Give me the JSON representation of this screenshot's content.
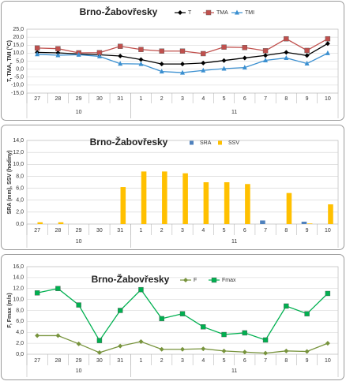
{
  "chart_data": [
    {
      "type": "line",
      "title": "Brno-Žabovřesky",
      "y_label": "T, TMA, TMI (°C)",
      "categories": [
        "27",
        "28",
        "29",
        "30",
        "31",
        "1",
        "2",
        "3",
        "4",
        "5",
        "6",
        "7",
        "8",
        "9",
        "10"
      ],
      "groups": [
        {
          "name": "10",
          "count": 5
        },
        {
          "name": "11",
          "count": 10
        }
      ],
      "series": [
        {
          "name": "T",
          "color": "#000000",
          "marker": "diamond",
          "values": [
            10.5,
            10.2,
            9.5,
            9.0,
            8.2,
            6.0,
            3.2,
            3.2,
            3.8,
            5.4,
            7.0,
            8.6,
            10.5,
            8.5,
            16.0
          ]
        },
        {
          "name": "TMA",
          "color": "#c0504d",
          "marker": "square",
          "values": [
            13.2,
            12.8,
            10.2,
            10.3,
            14.3,
            12.3,
            11.3,
            11.3,
            9.7,
            13.8,
            13.5,
            11.5,
            19.0,
            11.7,
            19.0
          ]
        },
        {
          "name": "TMI",
          "color": "#3a8fd0",
          "marker": "triangle",
          "values": [
            9.3,
            8.7,
            9.0,
            8.0,
            3.4,
            3.2,
            -1.5,
            -2.2,
            -0.8,
            0.3,
            1.0,
            5.5,
            7.0,
            3.5,
            10.0
          ]
        }
      ],
      "ylim": [
        -15,
        25
      ],
      "yticks": [
        {
          "value": -15,
          "label": "-15,0"
        },
        {
          "value": -10,
          "label": "-10,0"
        },
        {
          "value": -5,
          "label": "-5,0"
        },
        {
          "value": 0,
          "label": "0,0"
        },
        {
          "value": 5,
          "label": "5,0"
        },
        {
          "value": 10,
          "label": "10,0"
        },
        {
          "value": 15,
          "label": "15,0"
        },
        {
          "value": 20,
          "label": "20,0"
        },
        {
          "value": 25,
          "label": "25,0"
        }
      ],
      "grid": true,
      "legend": "top"
    },
    {
      "type": "bar",
      "title": "Brno-Žabovřesky",
      "y_label": "SRA (mm), SSV (hodiny)",
      "categories": [
        "27",
        "28",
        "29",
        "30",
        "31",
        "1",
        "2",
        "3",
        "4",
        "5",
        "6",
        "7",
        "8",
        "9",
        "10"
      ],
      "groups": [
        {
          "name": "10",
          "count": 5
        },
        {
          "name": "11",
          "count": 10
        }
      ],
      "series": [
        {
          "name": "SRA",
          "color": "#4f81bd",
          "values": [
            0,
            0,
            0,
            0,
            0,
            0,
            0,
            0,
            0,
            0,
            0,
            0.6,
            0,
            0.4,
            0
          ]
        },
        {
          "name": "SSV",
          "color": "#ffc000",
          "values": [
            0.3,
            0.3,
            0,
            0,
            6.2,
            8.8,
            8.8,
            8.5,
            7.0,
            7.0,
            6.7,
            0,
            5.2,
            0.1,
            3.3
          ]
        }
      ],
      "ylim": [
        0,
        14
      ],
      "yticks": [
        {
          "value": 0,
          "label": "0,0"
        },
        {
          "value": 2,
          "label": "2,0"
        },
        {
          "value": 4,
          "label": "4,0"
        },
        {
          "value": 6,
          "label": "6,0"
        },
        {
          "value": 8,
          "label": "8,0"
        },
        {
          "value": 10,
          "label": "10,0"
        },
        {
          "value": 12,
          "label": "12,0"
        },
        {
          "value": 14,
          "label": "14,0"
        }
      ],
      "grid": true,
      "legend": "top"
    },
    {
      "type": "line",
      "title": "Brno-Žabovřesky",
      "y_label": "F, Fmax (m/s)",
      "categories": [
        "27",
        "28",
        "29",
        "30",
        "31",
        "1",
        "2",
        "3",
        "4",
        "5",
        "6",
        "7",
        "8",
        "9",
        "10"
      ],
      "groups": [
        {
          "name": "10",
          "count": 5
        },
        {
          "name": "11",
          "count": 10
        }
      ],
      "series": [
        {
          "name": "F",
          "color": "#77933c",
          "marker": "diamond",
          "values": [
            3.4,
            3.4,
            1.9,
            0.3,
            1.5,
            2.3,
            0.9,
            0.9,
            1.0,
            0.6,
            0.4,
            0.2,
            0.6,
            0.5,
            2.0
          ]
        },
        {
          "name": "Fmax",
          "color": "#00b050",
          "marker": "square",
          "values": [
            11.2,
            12.0,
            9.0,
            2.5,
            8.0,
            11.8,
            6.5,
            7.4,
            5.0,
            3.6,
            3.9,
            2.6,
            8.8,
            7.4,
            11.1
          ]
        }
      ],
      "ylim": [
        0,
        16
      ],
      "yticks": [
        {
          "value": 0,
          "label": "0,0"
        },
        {
          "value": 2,
          "label": "2,0"
        },
        {
          "value": 4,
          "label": "4,0"
        },
        {
          "value": 6,
          "label": "6,0"
        },
        {
          "value": 8,
          "label": "8,0"
        },
        {
          "value": 10,
          "label": "10,0"
        },
        {
          "value": 12,
          "label": "12,0"
        },
        {
          "value": 14,
          "label": "14,0"
        },
        {
          "value": 16,
          "label": "16,0"
        }
      ],
      "grid": true,
      "legend": "top"
    }
  ]
}
